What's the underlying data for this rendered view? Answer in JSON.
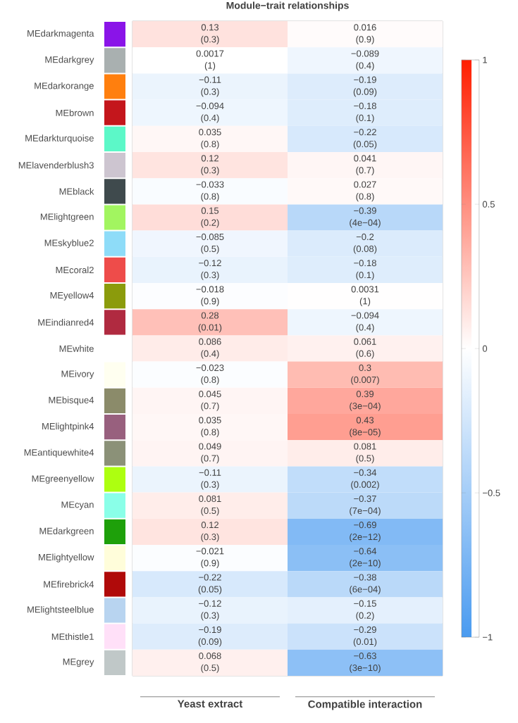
{
  "chart_data": {
    "type": "heatmap",
    "title": "Module−trait relationships",
    "categories": [
      "Yeast extract",
      "Compatible interaction"
    ],
    "y_categories": [
      "MEdarkmagenta",
      "MEdarkgrey",
      "MEdarkorange",
      "MEbrown",
      "MEdarkturquoise",
      "MElavenderblush3",
      "MEblack",
      "MElightgreen",
      "MEskyblue2",
      "MEcoral2",
      "MEyellow4",
      "MEindianred4",
      "MEwhite",
      "MEivory",
      "MEbisque4",
      "MElightpink4",
      "MEantiquewhite4",
      "MEgreenyellow",
      "MEcyan",
      "MEdarkgreen",
      "MElightyellow",
      "MEfirebrick4",
      "MElightsteelblue",
      "MEthistle1",
      "MEgrey"
    ],
    "cells": [
      [
        0.13,
        0.016
      ],
      [
        0.0017,
        -0.089
      ],
      [
        -0.11,
        -0.19
      ],
      [
        -0.094,
        -0.18
      ],
      [
        0.035,
        -0.22
      ],
      [
        0.12,
        0.041
      ],
      [
        -0.033,
        0.027
      ],
      [
        0.15,
        -0.39
      ],
      [
        -0.085,
        -0.2
      ],
      [
        -0.12,
        -0.18
      ],
      [
        -0.018,
        0.0031
      ],
      [
        0.28,
        -0.094
      ],
      [
        0.086,
        0.061
      ],
      [
        -0.023,
        0.3
      ],
      [
        0.045,
        0.39
      ],
      [
        0.035,
        0.43
      ],
      [
        0.049,
        0.081
      ],
      [
        -0.11,
        -0.34
      ],
      [
        0.081,
        -0.37
      ],
      [
        0.12,
        -0.69
      ],
      [
        -0.021,
        -0.64
      ],
      [
        -0.22,
        -0.38
      ],
      [
        -0.12,
        -0.15
      ],
      [
        -0.19,
        -0.29
      ],
      [
        0.068,
        -0.63
      ]
    ],
    "cell_labels": [
      [
        "0.13 (0.3)",
        "0.016 (0.9)"
      ],
      [
        "0.0017 (1)",
        "−0.089 (0.4)"
      ],
      [
        "−0.11 (0.3)",
        "−0.19 (0.09)"
      ],
      [
        "−0.094 (0.4)",
        "−0.18 (0.1)"
      ],
      [
        "0.035 (0.8)",
        "−0.22 (0.05)"
      ],
      [
        "0.12 (0.3)",
        "0.041 (0.7)"
      ],
      [
        "−0.033 (0.8)",
        "0.027 (0.8)"
      ],
      [
        "0.15 (0.2)",
        "−0.39 (4e−04)"
      ],
      [
        "−0.085 (0.5)",
        "−0.2 (0.08)"
      ],
      [
        "−0.12 (0.3)",
        "−0.18 (0.1)"
      ],
      [
        "−0.018 (0.9)",
        "0.0031 (1)"
      ],
      [
        "0.28 (0.01)",
        "−0.094 (0.4)"
      ],
      [
        "0.086 (0.4)",
        "0.061 (0.6)"
      ],
      [
        "−0.023 (0.8)",
        "0.3 (0.007)"
      ],
      [
        "0.045 (0.7)",
        "0.39 (3e−04)"
      ],
      [
        "0.035 (0.8)",
        "0.43 (8e−05)"
      ],
      [
        "0.049 (0.7)",
        "0.081 (0.5)"
      ],
      [
        "−0.11 (0.3)",
        "−0.34 (0.002)"
      ],
      [
        "0.081 (0.5)",
        "−0.37 (7e−04)"
      ],
      [
        "0.12 (0.3)",
        "−0.69 (2e−12)"
      ],
      [
        "−0.021 (0.9)",
        "−0.64 (2e−10)"
      ],
      [
        "−0.22 (0.05)",
        "−0.38 (6e−04)"
      ],
      [
        "−0.12 (0.3)",
        "−0.15 (0.2)"
      ],
      [
        "−0.19 (0.09)",
        "−0.29 (0.01)"
      ],
      [
        "0.068 (0.5)",
        "−0.63 (3e−10)"
      ]
    ],
    "clim": [
      -1,
      1
    ],
    "cticks": [
      {
        "value": -1,
        "label": "−1"
      },
      {
        "value": -0.5,
        "label": "−0.5"
      },
      0,
      0.5,
      1
    ]
  }
}
